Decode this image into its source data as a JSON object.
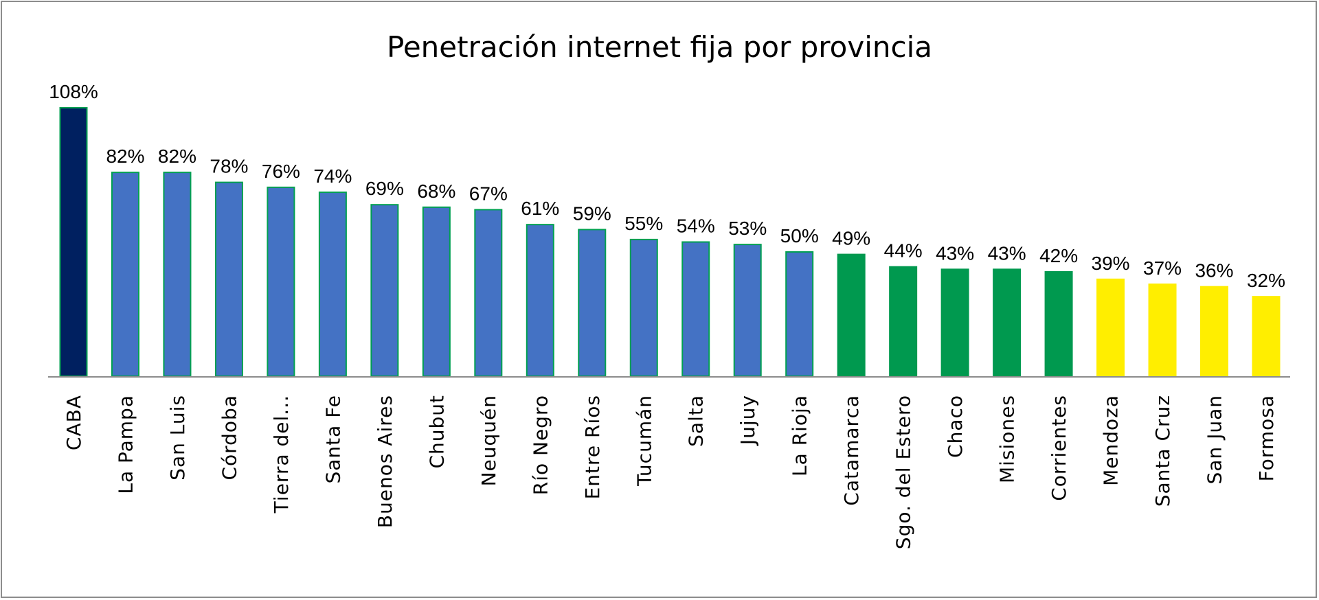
{
  "chart_data": {
    "type": "bar",
    "title": "Penetración internet fija por provincia",
    "xlabel": "",
    "ylabel": "",
    "ylim": [
      0,
      108
    ],
    "grid": false,
    "legend": "none",
    "categories": [
      "CABA",
      "La Pampa",
      "San Luis",
      "Córdoba",
      "Tierra del...",
      "Santa Fe",
      "Buenos Aires",
      "Chubut",
      "Neuquén",
      "Río Negro",
      "Entre Ríos",
      "Tucumán",
      "Salta",
      "Jujuy",
      "La Rioja",
      "Catamarca",
      "Sgo. del  Estero",
      "Chaco",
      "Misiones",
      "Corrientes",
      "Mendoza",
      "Santa Cruz",
      "San Juan",
      "Formosa"
    ],
    "values": [
      108,
      82,
      82,
      78,
      76,
      74,
      69,
      68,
      67,
      61,
      59,
      55,
      54,
      53,
      50,
      49,
      44,
      43,
      43,
      42,
      39,
      37,
      36,
      32
    ],
    "data_labels": [
      "108%",
      "82%",
      "82%",
      "78%",
      "76%",
      "74%",
      "69%",
      "68%",
      "67%",
      "61%",
      "59%",
      "55%",
      "54%",
      "53%",
      "50%",
      "49%",
      "44%",
      "43%",
      "43%",
      "42%",
      "39%",
      "37%",
      "36%",
      "32%"
    ],
    "bar_colors": [
      "#002060",
      "#4472c4",
      "#4472c4",
      "#4472c4",
      "#4472c4",
      "#4472c4",
      "#4472c4",
      "#4472c4",
      "#4472c4",
      "#4472c4",
      "#4472c4",
      "#4472c4",
      "#4472c4",
      "#4472c4",
      "#4472c4",
      "#00994f",
      "#00994f",
      "#00994f",
      "#00994f",
      "#00994f",
      "#ffee00",
      "#ffee00",
      "#ffee00",
      "#ffee00"
    ],
    "bar_outline_color": "#00a050"
  }
}
